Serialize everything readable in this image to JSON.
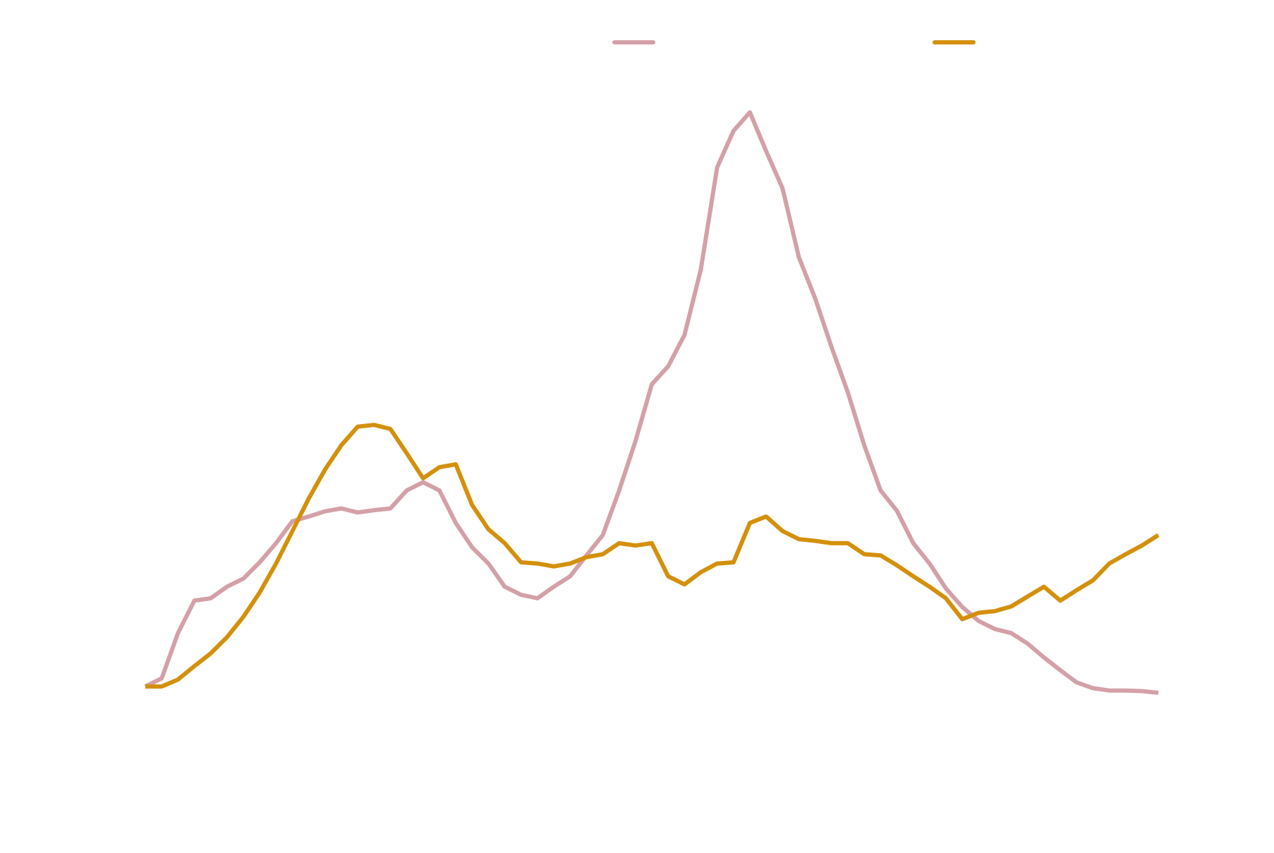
{
  "chart_data": {
    "type": "line",
    "ylim": [
      0,
      100
    ],
    "series": [
      {
        "color": "#d4a0a8",
        "values": [
          1.1,
          2.5,
          10.3,
          15.9,
          16.3,
          18.3,
          19.7,
          22.5,
          25.8,
          29.6,
          30.4,
          31.3,
          31.8,
          31.1,
          31.5,
          31.8,
          34.9,
          36.3,
          34.9,
          29.3,
          25.1,
          22.3,
          18.3,
          16.9,
          16.3,
          18.3,
          20.1,
          23.7,
          27.2,
          34.9,
          43.4,
          53.2,
          56.3,
          61.7,
          73,
          90.6,
          96.9,
          100.1,
          93.4,
          87,
          75.1,
          68,
          59.6,
          51.8,
          42.7,
          34.9,
          31.4,
          25.8,
          22.3,
          18,
          14.8,
          12.4,
          11,
          10.3,
          8.5,
          6.1,
          3.9,
          1.8,
          0.8,
          0.4,
          0.4,
          0.3,
          0
        ]
      },
      {
        "color": "#d4900c",
        "values": [
          1.1,
          1.1,
          2.3,
          4.6,
          6.8,
          9.6,
          13.1,
          17.3,
          22.3,
          27.9,
          33.5,
          38.5,
          42.7,
          45.9,
          46.2,
          45.5,
          41.3,
          37,
          38.9,
          39.4,
          32.4,
          28.2,
          25.8,
          22.5,
          22.3,
          21.8,
          22.3,
          23.4,
          23.9,
          25.8,
          25.4,
          25.8,
          20.1,
          18.7,
          20.8,
          22.3,
          22.5,
          29.3,
          30.4,
          27.9,
          26.5,
          26.2,
          25.8,
          25.8,
          23.9,
          23.7,
          22,
          20.1,
          18.3,
          16.3,
          12.7,
          13.8,
          14.1,
          14.9,
          16.6,
          18.3,
          15.9,
          17.7,
          19.4,
          22.3,
          23.9,
          25.4,
          27.2
        ]
      }
    ]
  }
}
